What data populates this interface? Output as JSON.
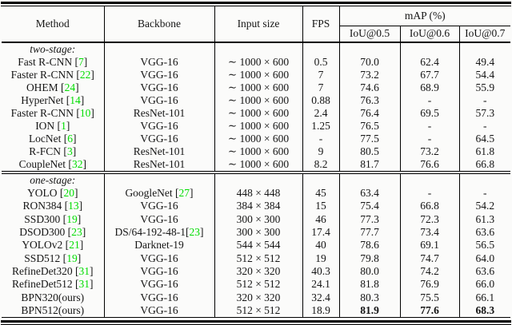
{
  "table": {
    "citation_color": "#00dd00",
    "columns": [
      "Method",
      "Backbone",
      "Input size",
      "FPS"
    ],
    "map_header": "mAP (%)",
    "iou_headers": [
      "IoU@0.5",
      "IoU@0.6",
      "IoU@0.7"
    ],
    "sections": [
      {
        "label": "two-stage:",
        "rows": [
          {
            "method": {
              "text": "Fast R-CNN",
              "cite": "7"
            },
            "backbone": {
              "text": "VGG-16"
            },
            "input_size": "∼ 1000 × 600",
            "fps": "0.5",
            "iou": [
              "70.0",
              "62.4",
              "49.4"
            ],
            "bold_iou": false
          },
          {
            "method": {
              "text": "Faster R-CNN",
              "cite": "22"
            },
            "backbone": {
              "text": "VGG-16"
            },
            "input_size": "∼ 1000 × 600",
            "fps": "7",
            "iou": [
              "73.2",
              "67.7",
              "54.4"
            ],
            "bold_iou": false
          },
          {
            "method": {
              "text": "OHEM",
              "cite": "24"
            },
            "backbone": {
              "text": "VGG-16"
            },
            "input_size": "∼ 1000 × 600",
            "fps": "7",
            "iou": [
              "74.6",
              "68.9",
              "55.9"
            ],
            "bold_iou": false
          },
          {
            "method": {
              "text": "HyperNet",
              "cite": "14"
            },
            "backbone": {
              "text": "VGG-16"
            },
            "input_size": "∼ 1000 × 600",
            "fps": "0.88",
            "iou": [
              "76.3",
              "-",
              "-"
            ],
            "bold_iou": false
          },
          {
            "method": {
              "text": "Faster R-CNN",
              "cite": "10"
            },
            "backbone": {
              "text": "ResNet-101"
            },
            "input_size": "∼ 1000 × 600",
            "fps": "2.4",
            "iou": [
              "76.4",
              "69.5",
              "57.3"
            ],
            "bold_iou": false
          },
          {
            "method": {
              "text": "ION",
              "cite": "1"
            },
            "backbone": {
              "text": "VGG-16"
            },
            "input_size": "∼ 1000 × 600",
            "fps": "1.25",
            "iou": [
              "76.5",
              "-",
              "-"
            ],
            "bold_iou": false
          },
          {
            "method": {
              "text": "LocNet",
              "cite": "6"
            },
            "backbone": {
              "text": "VGG-16"
            },
            "input_size": "∼ 1000 × 600",
            "fps": "-",
            "iou": [
              "77.5",
              "-",
              "64.5"
            ],
            "bold_iou": false
          },
          {
            "method": {
              "text": "R-FCN",
              "cite": "3"
            },
            "backbone": {
              "text": "ResNet-101"
            },
            "input_size": "∼ 1000 × 600",
            "fps": "9",
            "iou": [
              "80.5",
              "73.2",
              "61.8"
            ],
            "bold_iou": false
          },
          {
            "method": {
              "text": "CoupleNet",
              "cite": "32"
            },
            "backbone": {
              "text": "ResNet-101"
            },
            "input_size": "∼ 1000 × 600",
            "fps": "8.2",
            "iou": [
              "81.7",
              "76.6",
              "66.8"
            ],
            "bold_iou": false
          }
        ]
      },
      {
        "label": "one-stage:",
        "rows": [
          {
            "method": {
              "text": "YOLO",
              "cite": "20"
            },
            "backbone": {
              "text": "GoogleNet",
              "cite": "27"
            },
            "input_size": "448 × 448",
            "fps": "45",
            "iou": [
              "63.4",
              "-",
              "-"
            ],
            "bold_iou": false
          },
          {
            "method": {
              "text": "RON384",
              "cite": "13"
            },
            "backbone": {
              "text": "VGG-16"
            },
            "input_size": "384 × 384",
            "fps": "15",
            "iou": [
              "75.4",
              "66.8",
              "54.2"
            ],
            "bold_iou": false
          },
          {
            "method": {
              "text": "SSD300",
              "cite": "19"
            },
            "backbone": {
              "text": "VGG-16"
            },
            "input_size": "300 × 300",
            "fps": "46",
            "iou": [
              "77.3",
              "72.3",
              "61.3"
            ],
            "bold_iou": false
          },
          {
            "method": {
              "text": "DSOD300",
              "cite": "23"
            },
            "backbone": {
              "text": "DS/64-192-48-1",
              "cite": "23",
              "cite_attached": true
            },
            "input_size": "300 × 300",
            "fps": "17.4",
            "iou": [
              "77.7",
              "73.4",
              "63.6"
            ],
            "bold_iou": false
          },
          {
            "method": {
              "text": "YOLOv2",
              "cite": "21"
            },
            "backbone": {
              "text": "Darknet-19"
            },
            "input_size": "544 × 544",
            "fps": "40",
            "iou": [
              "78.6",
              "69.1",
              "56.5"
            ],
            "bold_iou": false
          },
          {
            "method": {
              "text": "SSD512",
              "cite": "19"
            },
            "backbone": {
              "text": "VGG-16"
            },
            "input_size": "512 × 512",
            "fps": "19",
            "iou": [
              "79.8",
              "74.7",
              "64.0"
            ],
            "bold_iou": false
          },
          {
            "method": {
              "text": "RefineDet320",
              "cite": "31"
            },
            "backbone": {
              "text": "VGG-16"
            },
            "input_size": "320 × 320",
            "fps": "40.3",
            "iou": [
              "80.0",
              "74.2",
              "63.6"
            ],
            "bold_iou": false
          },
          {
            "method": {
              "text": "RefineDet512",
              "cite": "31"
            },
            "backbone": {
              "text": "VGG-16"
            },
            "input_size": "512 × 512",
            "fps": "24.1",
            "iou": [
              "81.8",
              "76.9",
              "66.0"
            ],
            "bold_iou": false
          },
          {
            "method": {
              "text": "BPN320(ours)"
            },
            "backbone": {
              "text": "VGG-16"
            },
            "input_size": "320 × 320",
            "fps": "32.4",
            "iou": [
              "80.3",
              "75.5",
              "66.1"
            ],
            "bold_iou": false
          },
          {
            "method": {
              "text": "BPN512(ours)"
            },
            "backbone": {
              "text": "VGG-16"
            },
            "input_size": "512 × 512",
            "fps": "18.9",
            "iou": [
              "81.9",
              "77.6",
              "68.3"
            ],
            "bold_iou": true
          }
        ]
      }
    ]
  }
}
